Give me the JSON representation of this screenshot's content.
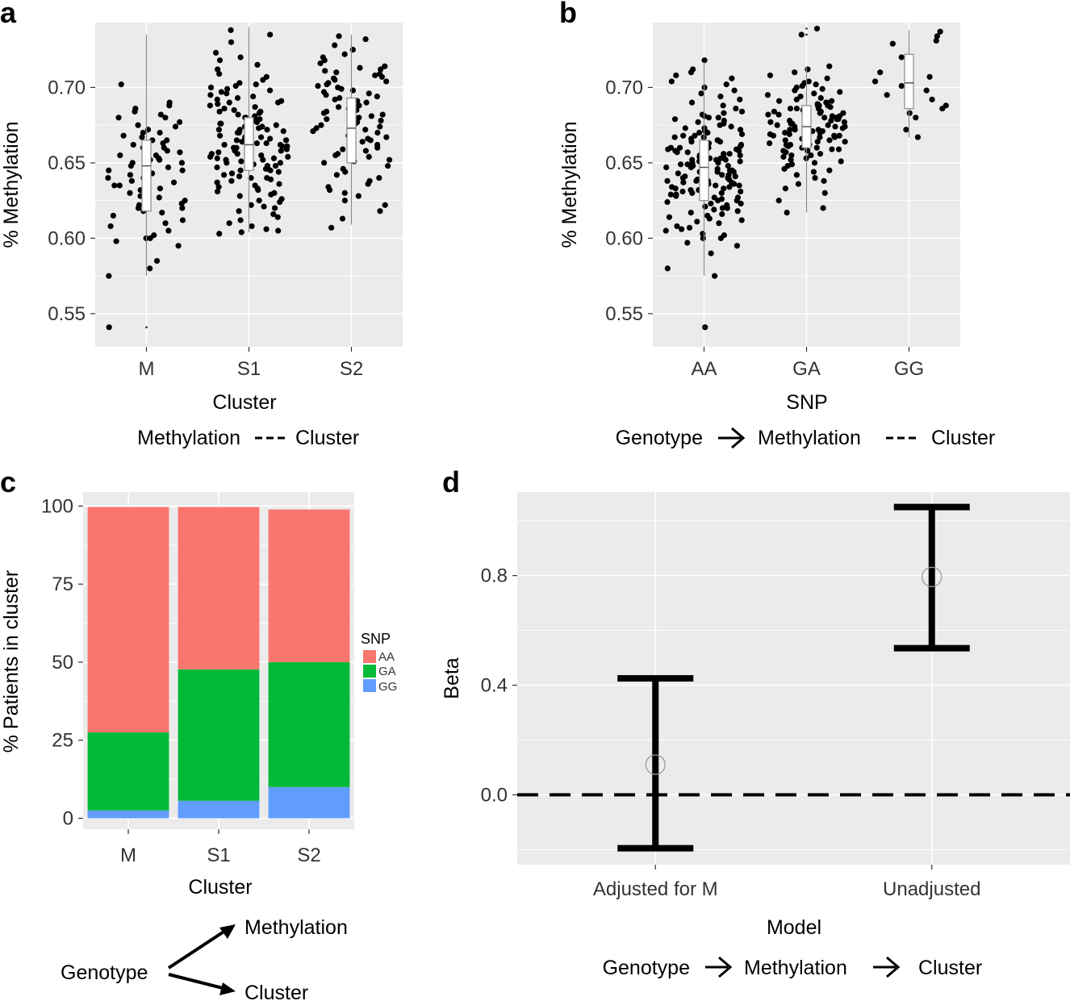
{
  "panels": {
    "a": {
      "letter": "a",
      "caption": {
        "left": "Methylation",
        "right": "Cluster"
      }
    },
    "b": {
      "letter": "b",
      "caption": {
        "left": "Genotype",
        "mid": "Methylation",
        "right": "Cluster"
      }
    },
    "c": {
      "letter": "c",
      "caption": {
        "source": "Genotype",
        "target_top": "Methylation",
        "target_bottom": "Cluster"
      }
    },
    "d": {
      "letter": "d",
      "caption": {
        "left": "Genotype",
        "mid": "Methylation",
        "right": "Cluster"
      }
    }
  },
  "colors": {
    "panel_bg": "#ebebeb",
    "grid": "#ffffff",
    "AA": "#f8766d",
    "GA": "#00ba38",
    "GG": "#619cff",
    "point": "#000000"
  },
  "chart_data": [
    {
      "id": "a",
      "type": "scatter",
      "subtype": "jittered points with boxplot",
      "title": "",
      "xlabel": "Cluster",
      "ylabel": "% Methylation",
      "categories": [
        "M",
        "S1",
        "S2"
      ],
      "ylim": [
        0.528,
        0.743
      ],
      "yticks": [
        0.55,
        0.6,
        0.65,
        0.7
      ],
      "ytick_labels": [
        "0.55",
        "0.60",
        "0.65",
        "0.70"
      ],
      "point_counts": [
        70,
        130,
        85
      ],
      "boxes": [
        {
          "category": "M",
          "whisker_low": 0.575,
          "q1": 0.618,
          "median": 0.648,
          "q3": 0.665,
          "whisker_high": 0.735,
          "outliers": [
            0.541
          ]
        },
        {
          "category": "S1",
          "whisker_low": 0.604,
          "q1": 0.645,
          "median": 0.662,
          "q3": 0.68,
          "whisker_high": 0.74,
          "outliers": []
        },
        {
          "category": "S2",
          "whisker_low": 0.609,
          "q1": 0.65,
          "median": 0.673,
          "q3": 0.693,
          "whisker_high": 0.735,
          "outliers": []
        }
      ],
      "points": {
        "M": [
          0.541,
          0.575,
          0.58,
          0.585,
          0.595,
          0.598,
          0.6,
          0.6,
          0.602,
          0.605,
          0.608,
          0.61,
          0.612,
          0.615,
          0.617,
          0.618,
          0.62,
          0.62,
          0.622,
          0.623,
          0.625,
          0.627,
          0.628,
          0.63,
          0.63,
          0.632,
          0.633,
          0.635,
          0.635,
          0.637,
          0.638,
          0.64,
          0.64,
          0.642,
          0.643,
          0.645,
          0.645,
          0.647,
          0.648,
          0.65,
          0.65,
          0.652,
          0.652,
          0.653,
          0.655,
          0.655,
          0.657,
          0.658,
          0.66,
          0.66,
          0.662,
          0.663,
          0.665,
          0.665,
          0.667,
          0.668,
          0.67,
          0.67,
          0.672,
          0.674,
          0.675,
          0.677,
          0.68,
          0.68,
          0.682,
          0.684,
          0.686,
          0.688,
          0.69,
          0.702
        ],
        "S1": [
          0.603,
          0.604,
          0.605,
          0.606,
          0.608,
          0.61,
          0.612,
          0.614,
          0.616,
          0.618,
          0.62,
          0.621,
          0.622,
          0.624,
          0.625,
          0.626,
          0.628,
          0.629,
          0.63,
          0.631,
          0.632,
          0.633,
          0.634,
          0.635,
          0.636,
          0.637,
          0.638,
          0.639,
          0.64,
          0.641,
          0.642,
          0.643,
          0.644,
          0.645,
          0.645,
          0.646,
          0.647,
          0.648,
          0.648,
          0.649,
          0.65,
          0.65,
          0.651,
          0.652,
          0.652,
          0.653,
          0.654,
          0.654,
          0.655,
          0.656,
          0.656,
          0.657,
          0.658,
          0.658,
          0.659,
          0.66,
          0.66,
          0.661,
          0.662,
          0.662,
          0.663,
          0.663,
          0.664,
          0.665,
          0.665,
          0.666,
          0.667,
          0.667,
          0.668,
          0.669,
          0.67,
          0.67,
          0.671,
          0.672,
          0.672,
          0.673,
          0.674,
          0.674,
          0.675,
          0.676,
          0.676,
          0.677,
          0.678,
          0.679,
          0.68,
          0.68,
          0.681,
          0.682,
          0.683,
          0.684,
          0.685,
          0.686,
          0.687,
          0.688,
          0.689,
          0.69,
          0.69,
          0.691,
          0.692,
          0.693,
          0.694,
          0.695,
          0.696,
          0.697,
          0.698,
          0.699,
          0.7,
          0.701,
          0.702,
          0.703,
          0.705,
          0.707,
          0.709,
          0.712,
          0.715,
          0.718,
          0.72,
          0.723,
          0.73,
          0.735,
          0.738,
          0.64,
          0.658,
          0.664,
          0.672,
          0.646,
          0.668,
          0.684,
          0.661,
          0.653
        ],
        "S2": [
          0.607,
          0.613,
          0.618,
          0.622,
          0.625,
          0.628,
          0.63,
          0.632,
          0.634,
          0.636,
          0.638,
          0.64,
          0.642,
          0.644,
          0.646,
          0.648,
          0.65,
          0.651,
          0.652,
          0.654,
          0.655,
          0.656,
          0.658,
          0.659,
          0.66,
          0.661,
          0.662,
          0.664,
          0.665,
          0.666,
          0.667,
          0.668,
          0.67,
          0.671,
          0.672,
          0.673,
          0.674,
          0.675,
          0.676,
          0.677,
          0.678,
          0.679,
          0.68,
          0.681,
          0.682,
          0.683,
          0.684,
          0.685,
          0.686,
          0.687,
          0.688,
          0.689,
          0.69,
          0.691,
          0.692,
          0.693,
          0.694,
          0.695,
          0.696,
          0.697,
          0.698,
          0.699,
          0.7,
          0.701,
          0.702,
          0.703,
          0.704,
          0.705,
          0.706,
          0.707,
          0.708,
          0.709,
          0.71,
          0.711,
          0.712,
          0.713,
          0.714,
          0.716,
          0.718,
          0.72,
          0.722,
          0.725,
          0.728,
          0.732,
          0.734
        ]
      }
    },
    {
      "id": "b",
      "type": "scatter",
      "subtype": "jittered points with boxplot",
      "title": "",
      "xlabel": "SNP",
      "ylabel": "% Methylation",
      "categories": [
        "AA",
        "GA",
        "GG"
      ],
      "ylim": [
        0.528,
        0.743
      ],
      "yticks": [
        0.55,
        0.6,
        0.65,
        0.7
      ],
      "ytick_labels": [
        "0.55",
        "0.60",
        "0.65",
        "0.70"
      ],
      "point_counts": [
        155,
        112,
        18
      ],
      "boxes": [
        {
          "category": "AA",
          "whisker_low": 0.575,
          "q1": 0.625,
          "median": 0.647,
          "q3": 0.665,
          "whisker_high": 0.717,
          "outliers": [
            0.541
          ]
        },
        {
          "category": "GA",
          "whisker_low": 0.617,
          "q1": 0.66,
          "median": 0.674,
          "q3": 0.688,
          "whisker_high": 0.714,
          "outliers": [
            0.735,
            0.739
          ]
        },
        {
          "category": "GG",
          "whisker_low": 0.667,
          "q1": 0.686,
          "median": 0.703,
          "q3": 0.722,
          "whisker_high": 0.738,
          "outliers": []
        }
      ],
      "points": {
        "AA": [
          0.541,
          0.575,
          0.58,
          0.59,
          0.595,
          0.597,
          0.6,
          0.6,
          0.602,
          0.603,
          0.605,
          0.606,
          0.607,
          0.608,
          0.61,
          0.611,
          0.612,
          0.613,
          0.614,
          0.615,
          0.616,
          0.617,
          0.618,
          0.619,
          0.62,
          0.62,
          0.621,
          0.622,
          0.623,
          0.623,
          0.624,
          0.625,
          0.625,
          0.626,
          0.627,
          0.627,
          0.628,
          0.629,
          0.629,
          0.63,
          0.63,
          0.631,
          0.631,
          0.632,
          0.632,
          0.633,
          0.633,
          0.634,
          0.634,
          0.635,
          0.635,
          0.636,
          0.636,
          0.637,
          0.637,
          0.638,
          0.638,
          0.639,
          0.639,
          0.64,
          0.64,
          0.641,
          0.641,
          0.642,
          0.642,
          0.643,
          0.643,
          0.644,
          0.644,
          0.645,
          0.645,
          0.646,
          0.646,
          0.647,
          0.647,
          0.648,
          0.648,
          0.649,
          0.649,
          0.65,
          0.65,
          0.651,
          0.651,
          0.652,
          0.652,
          0.653,
          0.653,
          0.654,
          0.654,
          0.655,
          0.655,
          0.656,
          0.656,
          0.657,
          0.657,
          0.658,
          0.658,
          0.659,
          0.659,
          0.66,
          0.66,
          0.661,
          0.661,
          0.662,
          0.662,
          0.663,
          0.663,
          0.664,
          0.664,
          0.665,
          0.665,
          0.666,
          0.667,
          0.667,
          0.668,
          0.668,
          0.669,
          0.67,
          0.67,
          0.671,
          0.672,
          0.673,
          0.673,
          0.674,
          0.675,
          0.676,
          0.677,
          0.678,
          0.679,
          0.68,
          0.68,
          0.681,
          0.682,
          0.683,
          0.684,
          0.686,
          0.688,
          0.69,
          0.692,
          0.694,
          0.696,
          0.698,
          0.7,
          0.702,
          0.704,
          0.706,
          0.708,
          0.71,
          0.712,
          0.718,
          0.638,
          0.652,
          0.644,
          0.66,
          0.633
        ],
        "GA": [
          0.617,
          0.62,
          0.625,
          0.63,
          0.633,
          0.636,
          0.638,
          0.64,
          0.642,
          0.644,
          0.645,
          0.646,
          0.648,
          0.649,
          0.65,
          0.651,
          0.652,
          0.653,
          0.654,
          0.655,
          0.656,
          0.657,
          0.658,
          0.659,
          0.66,
          0.66,
          0.661,
          0.662,
          0.662,
          0.663,
          0.664,
          0.664,
          0.665,
          0.666,
          0.666,
          0.667,
          0.668,
          0.668,
          0.669,
          0.67,
          0.67,
          0.671,
          0.672,
          0.672,
          0.673,
          0.674,
          0.674,
          0.675,
          0.676,
          0.676,
          0.677,
          0.678,
          0.678,
          0.679,
          0.68,
          0.68,
          0.681,
          0.682,
          0.682,
          0.683,
          0.684,
          0.684,
          0.685,
          0.686,
          0.686,
          0.687,
          0.688,
          0.688,
          0.689,
          0.69,
          0.69,
          0.691,
          0.692,
          0.693,
          0.694,
          0.695,
          0.696,
          0.697,
          0.698,
          0.699,
          0.7,
          0.701,
          0.702,
          0.703,
          0.704,
          0.706,
          0.708,
          0.71,
          0.712,
          0.714,
          0.735,
          0.739,
          0.658,
          0.665,
          0.672,
          0.679,
          0.686,
          0.662,
          0.669,
          0.675,
          0.681,
          0.688,
          0.655,
          0.671,
          0.677,
          0.683,
          0.659,
          0.667,
          0.674,
          0.684,
          0.691,
          0.668
        ],
        "GG": [
          0.672,
          0.68,
          0.683,
          0.686,
          0.688,
          0.692,
          0.695,
          0.698,
          0.701,
          0.704,
          0.707,
          0.71,
          0.72,
          0.729,
          0.731,
          0.734,
          0.737,
          0.667
        ]
      }
    },
    {
      "id": "c",
      "type": "bar",
      "subtype": "stacked",
      "title": "",
      "xlabel": "Cluster",
      "ylabel": "% Patients in cluster",
      "categories": [
        "M",
        "S1",
        "S2"
      ],
      "ylim": [
        -3.5,
        104.5
      ],
      "yticks": [
        0,
        25,
        50,
        75,
        100
      ],
      "legend": {
        "title": "SNP",
        "entries": [
          "AA",
          "GA",
          "GG"
        ],
        "position": "right"
      },
      "series": [
        {
          "name": "GG",
          "values": [
            2.5,
            5.6,
            10
          ]
        },
        {
          "name": "GA",
          "values": [
            25,
            42.1,
            40
          ]
        },
        {
          "name": "AA",
          "values": [
            72.2,
            52,
            48.9
          ]
        }
      ]
    },
    {
      "id": "d",
      "type": "scatter",
      "subtype": "point estimate with error bars",
      "title": "",
      "xlabel": "Model",
      "ylabel": "Beta",
      "categories": [
        "Adjusted for M",
        "Unadjusted"
      ],
      "ylim": [
        -0.255,
        1.105
      ],
      "yticks": [
        0,
        0.4,
        0.8
      ],
      "ytick_labels": [
        "0.0",
        "0.4",
        "0.8"
      ],
      "reference_line": 0,
      "estimates": [
        {
          "category": "Adjusted for M",
          "beta": 0.11,
          "lower": -0.195,
          "upper": 0.425
        },
        {
          "category": "Unadjusted",
          "beta": 0.795,
          "lower": 0.535,
          "upper": 1.05
        }
      ]
    }
  ]
}
